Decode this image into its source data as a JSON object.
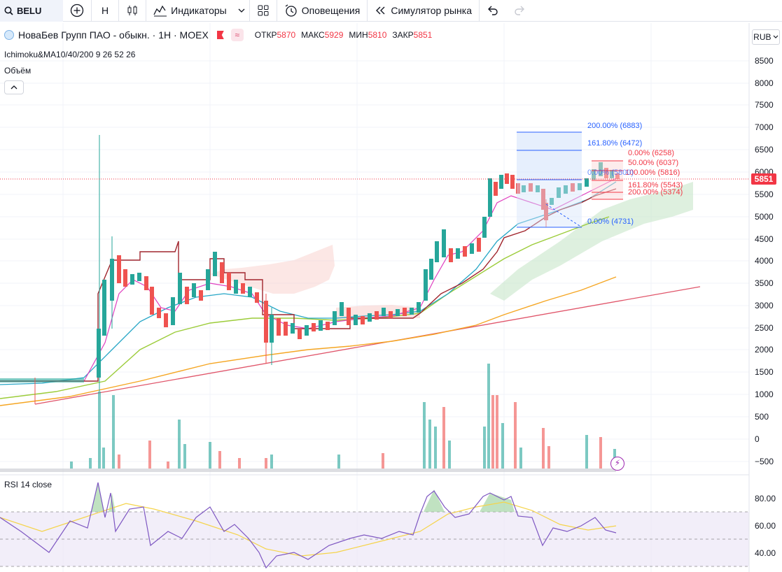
{
  "toolbar": {
    "symbol": "BELU",
    "interval": "H",
    "indicators_label": "Индикаторы",
    "alerts_label": "Оповещения",
    "replay_label": "Симулятор рынка"
  },
  "legend": {
    "title": "НоваБев Групп ПАО - обыкн. · 1Н · MOEX",
    "open_label": "ОТКР",
    "open": "5870",
    "high_label": "МАКС",
    "high": "5929",
    "low_label": "МИН",
    "low": "5810",
    "close_label": "ЗАКР",
    "close": "5851",
    "indicator": "Ichimoku&MA10/40/200 9 26 52 26",
    "volume": "Объём"
  },
  "price_scale": {
    "currency": "RUB",
    "labels": [
      "8500",
      "8000",
      "7500",
      "7000",
      "6500",
      "6000",
      "5500",
      "5000",
      "4500",
      "4000",
      "3500",
      "3000",
      "2500",
      "2000",
      "1500",
      "1000",
      "500",
      "0",
      "−500"
    ],
    "last_price": "5851"
  },
  "fib_labels": [
    {
      "text": "200.00% (6883)",
      "color": "#2962ff"
    },
    {
      "text": "161.80% (6472)",
      "color": "#2962ff"
    },
    {
      "text": "0.00% (6258)",
      "color": "#f23645"
    },
    {
      "text": "50.00% (6037)",
      "color": "#f23645"
    },
    {
      "text": "100.00% (5816)",
      "color": "#f23645"
    },
    {
      "text": "0.00% (5800)",
      "color": "#2962ff"
    },
    {
      "text": "161.80% (5543)",
      "color": "#f23645"
    },
    {
      "text": "200.00% (5374)",
      "color": "#f23645"
    },
    {
      "text": "0.00% (4731)",
      "color": "#2962ff"
    }
  ],
  "rsi": {
    "title": "RSI 14 close",
    "labels": [
      "80.00",
      "60.00",
      "40.00"
    ]
  },
  "colors": {
    "up": "#26a69a",
    "down": "#ef5350",
    "accent": "#2962ff",
    "last_price": "#f23645"
  }
}
